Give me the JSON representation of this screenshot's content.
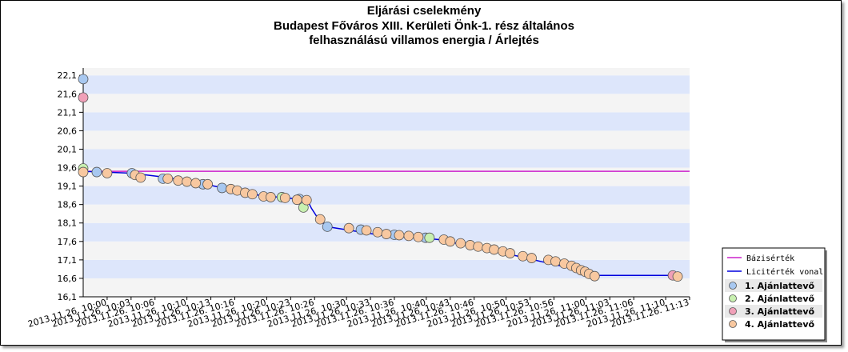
{
  "title": "Eljárási cselekmény",
  "subtitle": [
    "Budapest Főváros XIII. Kerületi Önk-1. rész általános",
    "felhasználású villamos energia / Árlejtés"
  ],
  "chart_data": {
    "type": "line",
    "title": "Eljárási cselekmény",
    "subtitle": "Budapest Főváros XIII. Kerületi Önk-1. rész általános felhasználású villamos energia / Árlejtés",
    "ylim": [
      16.1,
      22.3
    ],
    "y_ticks": [
      "16,1",
      "16,6",
      "17,1",
      "17,6",
      "18,1",
      "18,6",
      "19,1",
      "19,6",
      "20,1",
      "20,6",
      "21,1",
      "21,6",
      "22,1"
    ],
    "x_unit": "minutes after 2013.11.26. 09:57",
    "xlim": [
      0,
      76
    ],
    "x_ticks": [
      {
        "x": 3,
        "label": "2013.11.26. 10:00"
      },
      {
        "x": 6,
        "label": "2013.11.26. 10:03"
      },
      {
        "x": 9,
        "label": "2013.11.26. 10:06"
      },
      {
        "x": 13,
        "label": "2013.11.26. 10:10"
      },
      {
        "x": 16,
        "label": "2013.11.26. 10:13"
      },
      {
        "x": 19,
        "label": "2013.11.26. 10:16"
      },
      {
        "x": 23,
        "label": "2013.11.26. 10:20"
      },
      {
        "x": 26,
        "label": "2013.11.26. 10:23"
      },
      {
        "x": 29,
        "label": "2013.11.26. 10:26"
      },
      {
        "x": 33,
        "label": "2013.11.26. 10:30"
      },
      {
        "x": 36,
        "label": "2013.11.26. 10:33"
      },
      {
        "x": 39,
        "label": "2013.11.26. 10:36"
      },
      {
        "x": 43,
        "label": "2013.11.26. 10:40"
      },
      {
        "x": 46,
        "label": "2013.11.26. 10:43"
      },
      {
        "x": 49,
        "label": "2013.11.26. 10:46"
      },
      {
        "x": 53,
        "label": "2013.11.26. 10:50"
      },
      {
        "x": 56,
        "label": "2013.11.26. 10:53"
      },
      {
        "x": 59,
        "label": "2013.11.26. 10:56"
      },
      {
        "x": 63,
        "label": "2013.11.26. 11:00"
      },
      {
        "x": 66,
        "label": "2013.11.26. 11:03"
      },
      {
        "x": 69,
        "label": "2013.11.26. 11:06"
      },
      {
        "x": 73,
        "label": "2013.11.26. 11:10"
      },
      {
        "x": 76,
        "label": "2013.11.26. 11:13"
      }
    ],
    "baseline": {
      "name": "Bázisérték",
      "value": 19.5,
      "color": "#cc22cc"
    },
    "bid_line": {
      "name": "Licitérték vonal",
      "color": "#0000dd",
      "points": [
        [
          0,
          19.5
        ],
        [
          6.1,
          19.45
        ],
        [
          9.9,
          19.35
        ],
        [
          12.9,
          19.25
        ],
        [
          14.9,
          19.17
        ],
        [
          17.5,
          19.05
        ],
        [
          19.9,
          18.95
        ],
        [
          22.5,
          18.83
        ],
        [
          24.7,
          18.8
        ],
        [
          26.8,
          18.75
        ],
        [
          28.1,
          18.72
        ],
        [
          28.6,
          18.5
        ],
        [
          29.5,
          18.2
        ],
        [
          30.6,
          18.0
        ],
        [
          33.5,
          17.9
        ],
        [
          37.5,
          17.76
        ],
        [
          40.1,
          17.72
        ],
        [
          42.2,
          17.7
        ],
        [
          44.6,
          17.65
        ],
        [
          47.8,
          17.5
        ],
        [
          50.8,
          17.38
        ],
        [
          54.5,
          17.2
        ],
        [
          57.5,
          17.05
        ],
        [
          60.0,
          16.93
        ],
        [
          61.7,
          16.83
        ],
        [
          62.9,
          16.7
        ],
        [
          63.6,
          16.68
        ],
        [
          73.9,
          16.68
        ]
      ]
    },
    "series": [
      {
        "name": "1. Ajánlattevő",
        "color": "#a8c8f0",
        "points": [
          [
            0,
            22.0
          ],
          [
            1.7,
            19.48
          ],
          [
            6.1,
            19.45
          ],
          [
            10.0,
            19.3
          ],
          [
            15.0,
            19.15
          ],
          [
            17.4,
            19.05
          ],
          [
            27.1,
            18.75
          ],
          [
            30.6,
            18.0
          ],
          [
            34.8,
            17.92
          ],
          [
            39.0,
            17.78
          ],
          [
            42.9,
            17.7
          ]
        ]
      },
      {
        "name": "2. Ajánlattevő",
        "color": "#c8f0b0",
        "points": [
          [
            0,
            19.58
          ],
          [
            24.9,
            18.8
          ],
          [
            27.6,
            18.52
          ],
          [
            43.4,
            17.7
          ]
        ]
      },
      {
        "name": "3. Ajánlattevő",
        "color": "#f0a0b8",
        "points": [
          [
            0,
            21.5
          ],
          [
            73.9,
            16.68
          ]
        ]
      },
      {
        "name": "4. Ajánlattevő",
        "color": "#f8c8a0",
        "points": [
          [
            0,
            19.48
          ],
          [
            3.0,
            19.45
          ],
          [
            6.5,
            19.4
          ],
          [
            7.2,
            19.33
          ],
          [
            10.6,
            19.3
          ],
          [
            11.9,
            19.25
          ],
          [
            13.0,
            19.22
          ],
          [
            14.1,
            19.18
          ],
          [
            15.6,
            19.15
          ],
          [
            18.5,
            19.02
          ],
          [
            19.3,
            18.98
          ],
          [
            20.3,
            18.92
          ],
          [
            21.2,
            18.88
          ],
          [
            22.6,
            18.82
          ],
          [
            23.5,
            18.8
          ],
          [
            25.3,
            18.78
          ],
          [
            26.8,
            18.73
          ],
          [
            28.0,
            18.72
          ],
          [
            29.7,
            18.2
          ],
          [
            33.3,
            17.96
          ],
          [
            35.5,
            17.9
          ],
          [
            36.9,
            17.85
          ],
          [
            38.0,
            17.8
          ],
          [
            39.6,
            17.77
          ],
          [
            40.8,
            17.75
          ],
          [
            42.0,
            17.72
          ],
          [
            45.2,
            17.65
          ],
          [
            46.0,
            17.6
          ],
          [
            47.3,
            17.55
          ],
          [
            48.5,
            17.5
          ],
          [
            49.5,
            17.46
          ],
          [
            50.6,
            17.42
          ],
          [
            51.5,
            17.38
          ],
          [
            52.6,
            17.33
          ],
          [
            53.5,
            17.28
          ],
          [
            55.1,
            17.2
          ],
          [
            56.2,
            17.15
          ],
          [
            58.3,
            17.1
          ],
          [
            59.2,
            17.06
          ],
          [
            60.3,
            17.0
          ],
          [
            61.2,
            16.94
          ],
          [
            61.8,
            16.88
          ],
          [
            62.4,
            16.82
          ],
          [
            62.9,
            16.78
          ],
          [
            63.4,
            16.72
          ],
          [
            64.1,
            16.66
          ],
          [
            74.5,
            16.65
          ]
        ]
      }
    ],
    "legend_position": "bottom-right"
  }
}
